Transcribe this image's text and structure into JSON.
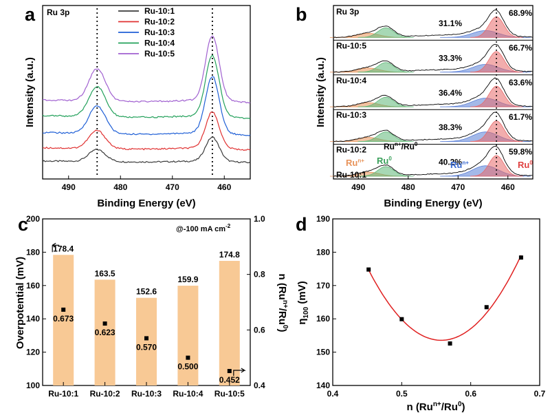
{
  "panel_labels": {
    "a": "a",
    "b": "b",
    "c": "c",
    "d": "d"
  },
  "chart_data": [
    {
      "panel": "a",
      "type": "line",
      "title": "Ru 3p",
      "xlabel": "Binding Energy (eV)",
      "ylabel": "Intensity (a.u.)",
      "xlim": [
        495,
        455
      ],
      "xticks": [
        "490",
        "480",
        "470",
        "460"
      ],
      "peak_markers": [
        484.5,
        462.3
      ],
      "legend": [
        "Ru-10:1",
        "Ru-10:2",
        "Ru-10:3",
        "Ru-10:4",
        "Ru-10:5"
      ],
      "colors": [
        "#3a3a3a",
        "#e03030",
        "#1f5fd6",
        "#22a05a",
        "#a060d0"
      ],
      "series": [
        {
          "name": "Ru-10:1",
          "offset": 0.0,
          "baseline": 0.5,
          "peak1": 1.0,
          "peak2": 2.0
        },
        {
          "name": "Ru-10:2",
          "offset": 1.0,
          "baseline": 0.8,
          "peak1": 1.5,
          "peak2": 3.0
        },
        {
          "name": "Ru-10:3",
          "offset": 2.2,
          "baseline": 1.0,
          "peak1": 2.3,
          "peak2": 4.7
        },
        {
          "name": "Ru-10:4",
          "offset": 3.6,
          "baseline": 1.0,
          "peak1": 2.5,
          "peak2": 5.0
        },
        {
          "name": "Ru-10:5",
          "offset": 4.9,
          "baseline": 1.0,
          "peak1": 2.7,
          "peak2": 5.4
        }
      ]
    },
    {
      "panel": "b",
      "type": "line",
      "title": "Ru 3p",
      "xlabel": "Binding Energy (eV)",
      "ylabel": "Intensity (a.u.)",
      "xlim": [
        495,
        455
      ],
      "xticks": [
        "490",
        "480",
        "470",
        "460"
      ],
      "peak_marker": 462.3,
      "samples": [
        {
          "name": "Ru-10:5",
          "ru_n": "31.1%",
          "ru_0": "68.9%"
        },
        {
          "name": "Ru-10:4",
          "ru_n": "33.3%",
          "ru_0": "66.7%"
        },
        {
          "name": "Ru-10:3",
          "ru_n": "36.4%",
          "ru_0": "63.6%"
        },
        {
          "name": "Ru-10:2",
          "ru_n": "38.3%",
          "ru_0": "61.7%"
        },
        {
          "name": "Ru-10:1",
          "ru_n": "40.2%",
          "ru_0": "59.8%"
        }
      ],
      "annotations": {
        "ratio_label": "Ru",
        "ratio_sup1": "n+",
        "ratio_mid": "/Ru",
        "ratio_sup2": "0",
        "run_left": "Ru",
        "run_left_sup": "n+",
        "ru0_green": "Ru",
        "ru0_green_sup": "0",
        "run_right": "Ru",
        "run_right_sup": "n+",
        "ru0_red": "Ru",
        "ru0_red_sup": "0"
      },
      "component_colors": {
        "Run+_left": "#e8935a",
        "Ru0_left": "#5fb878",
        "Run+_right": "#5a7fd6",
        "Ru0_right": "#e86a6a"
      }
    },
    {
      "panel": "c",
      "type": "bar",
      "categories": [
        "Ru-10:1",
        "Ru-10:2",
        "Ru-10:3",
        "Ru-10:4",
        "Ru-10:5"
      ],
      "values": [
        178.4,
        163.5,
        152.6,
        159.9,
        174.8
      ],
      "value_labels": [
        "178.4",
        "163.5",
        "152.6",
        "159.9",
        "174.8"
      ],
      "ratio_values": [
        0.673,
        0.623,
        0.57,
        0.5,
        0.452
      ],
      "ratio_labels": [
        "0.673",
        "0.623",
        "0.570",
        "0.500",
        "0.452"
      ],
      "annotation": "@-100 mA cm",
      "annotation_sup": "-2",
      "ylabel": "Overpotential (mV)",
      "ylim": [
        100,
        200
      ],
      "yticks": [
        "100",
        "120",
        "140",
        "160",
        "180",
        "200"
      ],
      "y2label_main": "n (Ru",
      "y2label_sup1": "n+",
      "y2label_mid": "/Ru",
      "y2label_sup2": "0",
      "y2label_end": ")",
      "y2lim": [
        0.4,
        1.0
      ],
      "y2ticks": [
        "0.4",
        "0.6",
        "0.8",
        "1.0"
      ],
      "bar_color": "#f8c995"
    },
    {
      "panel": "d",
      "type": "scatter",
      "x": [
        0.452,
        0.5,
        0.57,
        0.623,
        0.673
      ],
      "y": [
        174.8,
        159.9,
        152.6,
        163.5,
        178.4
      ],
      "fit": {
        "type": "quadratic",
        "color": "#e02020"
      },
      "xlim": [
        0.4,
        0.7
      ],
      "ylim": [
        140,
        190
      ],
      "xticks": [
        "0.4",
        "0.5",
        "0.6",
        "0.7"
      ],
      "yticks": [
        "140",
        "150",
        "160",
        "170",
        "180",
        "190"
      ],
      "xlabel_main": "n (Ru",
      "xlabel_sup1": "n+",
      "xlabel_mid": "/Ru",
      "xlabel_sup2": "0",
      "xlabel_end": ")",
      "ylabel_main": "η",
      "ylabel_sub": "100",
      "ylabel_end": " (mV)"
    }
  ]
}
